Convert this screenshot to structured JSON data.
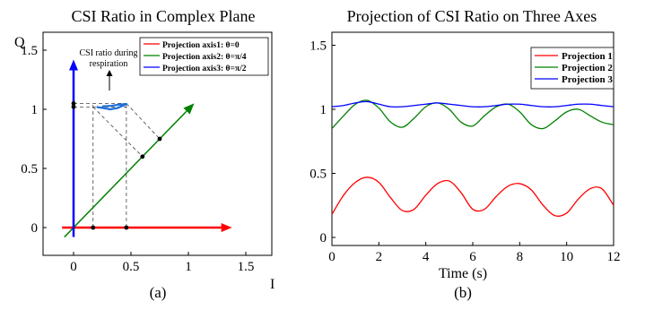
{
  "chart_data": [
    {
      "type": "line",
      "title": "CSI Ratio in Complex Plane",
      "xlabel": "I",
      "ylabel": "Q",
      "caption": "(a)",
      "xlim": [
        -0.15,
        1.6
      ],
      "ylim": [
        -0.1,
        1.55
      ],
      "xticks": [
        0,
        0.5,
        1,
        1.5
      ],
      "xtick_labels": [
        "0",
        "0.5",
        "1",
        "1.5"
      ],
      "yticks": [
        0,
        0.5,
        1,
        1.5
      ],
      "ytick_labels": [
        "0",
        "0.5",
        "1",
        "1.5"
      ],
      "grid": false,
      "legend_position": "top-right",
      "legend": [
        {
          "label": "Projection axis1: θ=0",
          "color": "#ff0000"
        },
        {
          "label": "Projection axis2: θ=π/4",
          "color": "#008000"
        },
        {
          "label": "Projection axis3: θ=π/2",
          "color": "#0000ff"
        }
      ],
      "annotation": {
        "text_line1": "CSI ratio during",
        "text_line2": "respiration",
        "x": 0.3,
        "y": 1.28
      },
      "axes_lines": [
        {
          "name": "Projection axis1",
          "angle": "0",
          "from": [
            -0.1,
            0
          ],
          "to": [
            1.38,
            0
          ],
          "color": "#ff0000"
        },
        {
          "name": "Projection axis2",
          "angle": "π/4",
          "from": [
            -0.08,
            -0.08
          ],
          "to": [
            1.05,
            1.05
          ],
          "color": "#008000"
        },
        {
          "name": "Projection axis3",
          "angle": "π/2",
          "from": [
            0,
            -0.08
          ],
          "to": [
            0,
            1.42
          ],
          "color": "#0000ff"
        }
      ],
      "csi_points": [
        {
          "I": 0.2,
          "Q": 1.02
        },
        {
          "I": 0.26,
          "Q": 1.01
        },
        {
          "I": 0.32,
          "Q": 1.0
        },
        {
          "I": 0.38,
          "Q": 1.01
        },
        {
          "I": 0.44,
          "Q": 1.035
        },
        {
          "I": 0.46,
          "Q": 1.045
        },
        {
          "I": 0.4,
          "Q": 1.04
        },
        {
          "I": 0.33,
          "Q": 1.03
        },
        {
          "I": 0.25,
          "Q": 1.025
        }
      ],
      "projection_points": [
        {
          "I": 0.17,
          "Q": 0
        },
        {
          "I": 0.46,
          "Q": 0
        },
        {
          "I": 0,
          "Q": 1.02
        },
        {
          "I": 0,
          "Q": 1.05
        },
        {
          "I": 0.6,
          "Q": 0.6
        },
        {
          "I": 0.75,
          "Q": 0.75
        }
      ],
      "dashed_box": {
        "i_min": 0.17,
        "i_max": 0.46,
        "q_min": 1.02,
        "q_max": 1.05
      }
    },
    {
      "type": "line",
      "title": "Projection of CSI Ratio on Three Axes",
      "xlabel": "Time (s)",
      "ylabel": "",
      "caption": "(b)",
      "xlim": [
        0,
        12
      ],
      "ylim": [
        -0.05,
        1.55
      ],
      "xticks": [
        0,
        2,
        4,
        6,
        8,
        10,
        12
      ],
      "xtick_labels": [
        "0",
        "2",
        "4",
        "6",
        "8",
        "10",
        "12"
      ],
      "yticks": [
        0,
        0.5,
        1,
        1.5
      ],
      "ytick_labels": [
        "0",
        "0.5",
        "1",
        "1.5"
      ],
      "grid": false,
      "legend_position": "top-right",
      "x": [
        0,
        0.5,
        1,
        1.5,
        2,
        2.5,
        3,
        3.5,
        4,
        4.5,
        5,
        5.5,
        6,
        6.5,
        7,
        7.5,
        8,
        8.5,
        9,
        9.5,
        10,
        10.5,
        11,
        11.5,
        12
      ],
      "series": [
        {
          "name": "Projection 1",
          "color": "#ff0000",
          "values": [
            0.18,
            0.33,
            0.43,
            0.47,
            0.43,
            0.31,
            0.21,
            0.22,
            0.33,
            0.42,
            0.44,
            0.35,
            0.22,
            0.22,
            0.32,
            0.4,
            0.42,
            0.37,
            0.25,
            0.17,
            0.19,
            0.3,
            0.38,
            0.38,
            0.25
          ]
        },
        {
          "name": "Projection 2",
          "color": "#008000",
          "values": [
            0.85,
            0.95,
            1.04,
            1.07,
            1.01,
            0.9,
            0.86,
            0.93,
            1.02,
            1.05,
            1.0,
            0.9,
            0.87,
            0.95,
            1.02,
            1.04,
            0.98,
            0.88,
            0.85,
            0.91,
            0.98,
            1.0,
            0.95,
            0.9,
            0.88
          ]
        },
        {
          "name": "Projection 3",
          "color": "#0000ff",
          "values": [
            1.02,
            1.03,
            1.05,
            1.06,
            1.04,
            1.02,
            1.02,
            1.03,
            1.04,
            1.05,
            1.04,
            1.03,
            1.02,
            1.02,
            1.03,
            1.04,
            1.04,
            1.03,
            1.02,
            1.02,
            1.03,
            1.04,
            1.04,
            1.03,
            1.02
          ]
        }
      ]
    }
  ]
}
